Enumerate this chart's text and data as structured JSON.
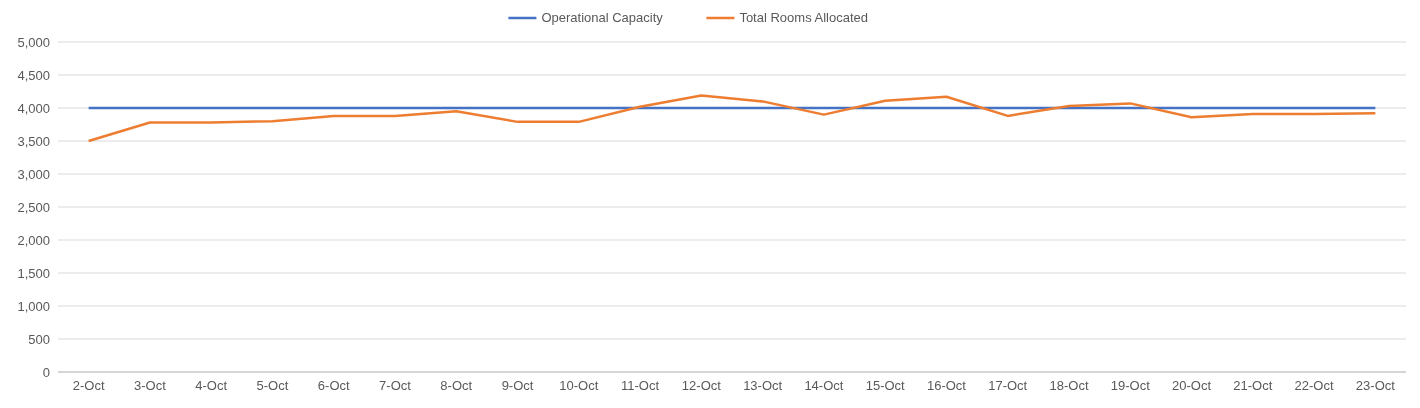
{
  "chart_data": {
    "type": "line",
    "categories": [
      "2-Oct",
      "3-Oct",
      "4-Oct",
      "5-Oct",
      "6-Oct",
      "7-Oct",
      "8-Oct",
      "9-Oct",
      "10-Oct",
      "11-Oct",
      "12-Oct",
      "13-Oct",
      "14-Oct",
      "15-Oct",
      "16-Oct",
      "17-Oct",
      "18-Oct",
      "19-Oct",
      "20-Oct",
      "21-Oct",
      "22-Oct",
      "23-Oct"
    ],
    "series": [
      {
        "name": "Operational Capacity",
        "color": "#4472c4",
        "values": [
          4000,
          4000,
          4000,
          4000,
          4000,
          4000,
          4000,
          4000,
          4000,
          4000,
          4000,
          4000,
          4000,
          4000,
          4000,
          4000,
          4000,
          4000,
          4000,
          4000,
          4000,
          4000
        ]
      },
      {
        "name": "Total Rooms Allocated",
        "color": "#ed7d31",
        "values": [
          3500,
          3780,
          3780,
          3800,
          3880,
          3880,
          3950,
          3790,
          3790,
          4020,
          4190,
          4100,
          3900,
          4110,
          4170,
          3880,
          4030,
          4070,
          3860,
          3910,
          3910,
          3920
        ]
      }
    ],
    "ylim": [
      0,
      5000
    ],
    "yticks": [
      0,
      500,
      {
        "value": 1000,
        "label": "1,000"
      },
      {
        "value": 1500,
        "label": "1,500"
      },
      {
        "value": 2000,
        "label": "2,000"
      },
      {
        "value": 2500,
        "label": "2,500"
      },
      {
        "value": 3000,
        "label": "3,000"
      },
      {
        "value": 3500,
        "label": "3,500"
      },
      {
        "value": 4000,
        "label": "4,000"
      },
      {
        "value": 4500,
        "label": "4,500"
      },
      {
        "value": 5000,
        "label": "5,000"
      }
    ],
    "grid": "y",
    "legend": "top",
    "marker": "none",
    "line_style": "solid"
  }
}
